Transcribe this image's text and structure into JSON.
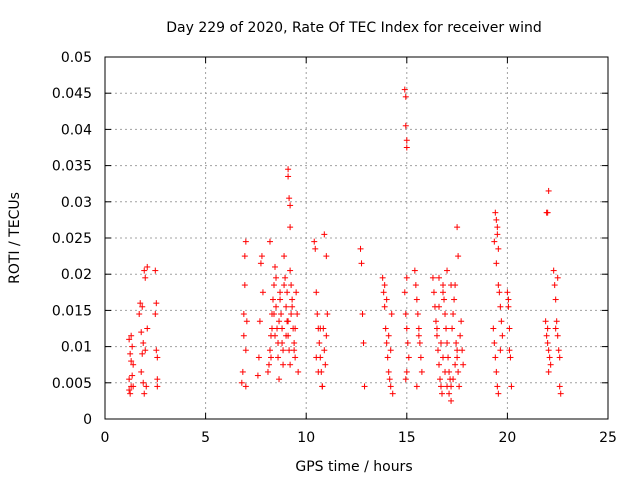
{
  "chart_data": {
    "type": "scatter",
    "title": "Day 229 of 2020, Rate Of TEC Index for receiver wind",
    "xlabel": "GPS time / hours",
    "ylabel": "ROTI / TECUs",
    "xlim": [
      0,
      25
    ],
    "ylim": [
      0,
      0.05
    ],
    "xticks": [
      "0",
      "5",
      "10",
      "15",
      "20",
      "25"
    ],
    "yticks": [
      "0",
      "0.005",
      "0.01",
      "0.015",
      "0.02",
      "0.025",
      "0.03",
      "0.035",
      "0.04",
      "0.045",
      "0.05"
    ],
    "grid": true,
    "marker": "+",
    "color": "#ff0000",
    "series": [
      {
        "x": [
          1.2,
          1.2,
          1.2,
          1.25,
          1.25,
          1.3,
          1.3,
          1.3,
          1.35,
          1.35,
          1.4,
          1.4,
          1.7,
          1.75,
          1.8,
          1.8,
          1.85,
          1.85,
          1.9,
          1.9,
          1.95,
          1.95,
          2.0,
          2.0,
          2.05,
          2.1,
          2.1,
          2.5,
          2.5,
          2.55,
          2.55,
          2.6,
          2.6,
          2.6,
          6.8,
          6.85,
          6.9,
          6.9,
          6.95,
          6.95,
          7.0,
          7.0,
          7.0,
          7.05,
          7.6,
          7.65,
          7.7,
          7.75,
          7.8,
          7.85,
          8.1,
          8.15,
          8.2,
          8.25,
          8.3,
          8.35,
          8.4,
          8.45,
          8.5,
          8.55,
          8.6,
          8.65,
          8.7,
          8.75,
          8.8,
          8.85,
          8.9,
          8.95,
          9.0,
          9.05,
          9.1,
          9.15,
          9.2,
          9.25,
          9.3,
          9.35,
          9.4,
          9.45,
          9.5,
          9.55,
          9.6,
          8.2,
          8.3,
          8.4,
          8.5,
          8.6,
          8.7,
          8.8,
          8.9,
          9.0,
          9.1,
          9.2,
          9.3,
          9.4,
          8.25,
          8.45,
          8.65,
          8.85,
          9.05,
          9.25,
          9.45,
          9.1,
          9.1,
          9.15,
          9.2,
          9.2,
          10.4,
          10.45,
          10.5,
          10.55,
          10.6,
          10.65,
          10.7,
          10.75,
          10.8,
          10.85,
          10.9,
          10.95,
          11.0,
          11.05,
          10.5,
          10.6,
          10.7,
          10.8,
          10.9,
          11.0,
          12.7,
          12.75,
          12.8,
          12.85,
          12.9,
          13.8,
          13.85,
          13.9,
          13.95,
          14.0,
          14.05,
          14.1,
          14.15,
          14.2,
          14.25,
          14.3,
          13.9,
          14.0,
          14.1,
          14.2,
          14.9,
          14.95,
          14.95,
          15.0,
          15.0,
          15.0,
          14.9,
          14.95,
          15.0,
          15.05,
          15.1,
          15.0,
          14.95,
          15.4,
          15.45,
          15.5,
          15.55,
          15.6,
          15.65,
          15.7,
          15.75,
          15.5,
          15.6,
          16.3,
          16.35,
          16.4,
          16.45,
          16.5,
          16.55,
          16.6,
          16.65,
          16.7,
          16.75,
          16.8,
          16.85,
          16.9,
          16.95,
          17.0,
          17.05,
          17.1,
          17.15,
          17.2,
          17.25,
          17.3,
          17.35,
          17.4,
          17.45,
          17.5,
          17.55,
          17.6,
          17.65,
          17.7,
          17.75,
          17.8,
          16.5,
          16.6,
          16.7,
          16.8,
          16.9,
          17.0,
          17.1,
          17.2,
          17.3,
          17.4,
          17.5,
          16.6,
          16.8,
          17.0,
          17.2,
          17.5,
          17.55,
          19.3,
          19.35,
          19.4,
          19.45,
          19.5,
          19.55,
          19.6,
          19.65,
          19.7,
          19.75,
          19.35,
          19.45,
          19.55,
          19.65,
          19.4,
          19.45,
          19.5,
          19.5,
          19.55,
          20.0,
          20.05,
          20.1,
          20.15,
          20.2,
          20.05,
          20.1,
          21.9,
          21.95,
          22.0,
          22.05,
          22.1,
          22.15,
          21.95,
          22.05,
          22.0,
          22.0,
          22.05,
          22.3,
          22.35,
          22.4,
          22.45,
          22.5,
          22.55,
          22.6,
          22.65,
          22.4,
          22.5,
          22.6
        ],
        "y": [
          0.004,
          0.0055,
          0.011,
          0.0035,
          0.009,
          0.0045,
          0.008,
          0.0115,
          0.006,
          0.01,
          0.0045,
          0.0075,
          0.0145,
          0.016,
          0.012,
          0.0065,
          0.009,
          0.0155,
          0.005,
          0.0105,
          0.0035,
          0.0205,
          0.0095,
          0.0195,
          0.0045,
          0.0125,
          0.021,
          0.0205,
          0.0145,
          0.0095,
          0.016,
          0.0045,
          0.0085,
          0.0055,
          0.005,
          0.0065,
          0.0115,
          0.0145,
          0.0185,
          0.0225,
          0.0245,
          0.0095,
          0.0045,
          0.0135,
          0.006,
          0.0085,
          0.0135,
          0.0215,
          0.0225,
          0.0175,
          0.0065,
          0.0075,
          0.0095,
          0.0115,
          0.0145,
          0.0165,
          0.0185,
          0.021,
          0.0155,
          0.0125,
          0.0085,
          0.0055,
          0.0175,
          0.0145,
          0.0105,
          0.0075,
          0.0225,
          0.0195,
          0.0155,
          0.0135,
          0.0115,
          0.0095,
          0.0075,
          0.0185,
          0.0165,
          0.0125,
          0.0105,
          0.0085,
          0.0175,
          0.0145,
          0.0065,
          0.0245,
          0.0125,
          0.0145,
          0.0195,
          0.0105,
          0.0165,
          0.0125,
          0.0185,
          0.0115,
          0.0135,
          0.0205,
          0.0155,
          0.0095,
          0.0085,
          0.0115,
          0.0135,
          0.0095,
          0.0175,
          0.0145,
          0.0125,
          0.0345,
          0.0335,
          0.0305,
          0.0295,
          0.0265,
          0.0245,
          0.0235,
          0.0175,
          0.0145,
          0.0125,
          0.0105,
          0.0085,
          0.0065,
          0.0045,
          0.0125,
          0.0095,
          0.0075,
          0.0115,
          0.0145,
          0.0085,
          0.0065,
          0.0125,
          0.0045,
          0.0255,
          0.0225,
          0.0235,
          0.0215,
          0.0145,
          0.0105,
          0.0045,
          0.0195,
          0.0175,
          0.0155,
          0.0125,
          0.0105,
          0.0085,
          0.0065,
          0.0055,
          0.0045,
          0.0145,
          0.0035,
          0.0185,
          0.0165,
          0.0115,
          0.0095,
          0.0455,
          0.0445,
          0.0405,
          0.0385,
          0.0375,
          0.0195,
          0.0175,
          0.0145,
          0.0125,
          0.0105,
          0.0085,
          0.0065,
          0.0055,
          0.0205,
          0.0185,
          0.0165,
          0.0145,
          0.0125,
          0.0105,
          0.0085,
          0.0065,
          0.0045,
          0.0115,
          0.0195,
          0.0175,
          0.0155,
          0.0135,
          0.0115,
          0.0095,
          0.0075,
          0.0055,
          0.0045,
          0.0035,
          0.0185,
          0.0165,
          0.0145,
          0.0125,
          0.0105,
          0.0085,
          0.0065,
          0.0055,
          0.0045,
          0.0125,
          0.0145,
          0.0165,
          0.0185,
          0.0105,
          0.0085,
          0.0065,
          0.0045,
          0.0115,
          0.0135,
          0.0095,
          0.0075,
          0.0125,
          0.0155,
          0.0105,
          0.0085,
          0.0065,
          0.0045,
          0.0035,
          0.0025,
          0.0055,
          0.0075,
          0.0095,
          0.0195,
          0.0175,
          0.0205,
          0.0185,
          0.0265,
          0.0225,
          0.0125,
          0.0105,
          0.0085,
          0.0065,
          0.0045,
          0.0035,
          0.0175,
          0.0155,
          0.0135,
          0.0115,
          0.0245,
          0.0215,
          0.0185,
          0.0095,
          0.0285,
          0.0275,
          0.0265,
          0.0255,
          0.0235,
          0.0175,
          0.0155,
          0.0095,
          0.0085,
          0.0045,
          0.0165,
          0.0125,
          0.0135,
          0.0115,
          0.0105,
          0.0095,
          0.0085,
          0.0075,
          0.0285,
          0.0315,
          0.0285,
          0.0125,
          0.0065,
          0.0205,
          0.0185,
          0.0165,
          0.0135,
          0.0115,
          0.0095,
          0.0045,
          0.0035,
          0.0125,
          0.0195,
          0.0085
        ]
      }
    ]
  }
}
